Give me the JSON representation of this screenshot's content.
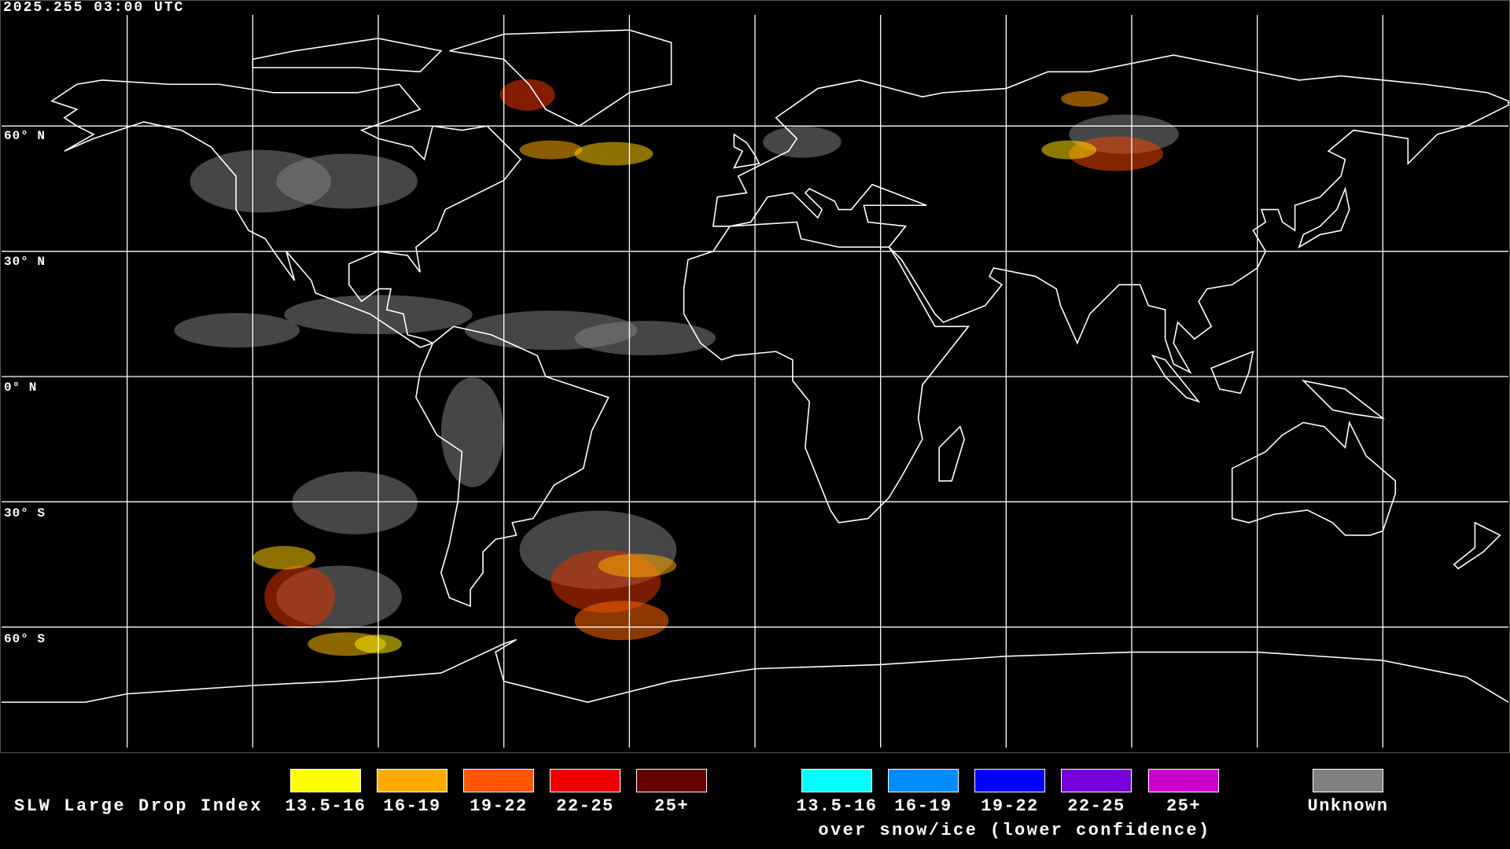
{
  "header": {
    "timestamp": "2025.255 03:00 UTC"
  },
  "map": {
    "projection": "equirectangular",
    "lon_range": [
      -180,
      180
    ],
    "lat_range": [
      -90,
      90
    ],
    "grid_spacing_deg": 30,
    "lat_labels": [
      "60° N",
      "30° N",
      "0° N",
      "30° S",
      "60° S"
    ],
    "coastline_color": "#ffffff",
    "grid_color": "#ffffff",
    "background": "#000000"
  },
  "legend": {
    "title": "SLW Large Drop Index",
    "main": [
      {
        "label": "13.5-16",
        "color": "#ffff00"
      },
      {
        "label": "16-19",
        "color": "#ffaa00"
      },
      {
        "label": "19-22",
        "color": "#ff5500"
      },
      {
        "label": "22-25",
        "color": "#ee0000"
      },
      {
        "label": "25+",
        "color": "#660000"
      }
    ],
    "snow_ice": [
      {
        "label": "13.5-16",
        "color": "#00ffff"
      },
      {
        "label": "16-19",
        "color": "#008cff"
      },
      {
        "label": "19-22",
        "color": "#0000ff"
      },
      {
        "label": "22-25",
        "color": "#7700dd"
      },
      {
        "label": "25+",
        "color": "#cc00cc"
      }
    ],
    "snow_ice_caption": "over snow/ice (lower confidence)",
    "unknown": {
      "label": "Unknown",
      "color": "#808080"
    }
  }
}
